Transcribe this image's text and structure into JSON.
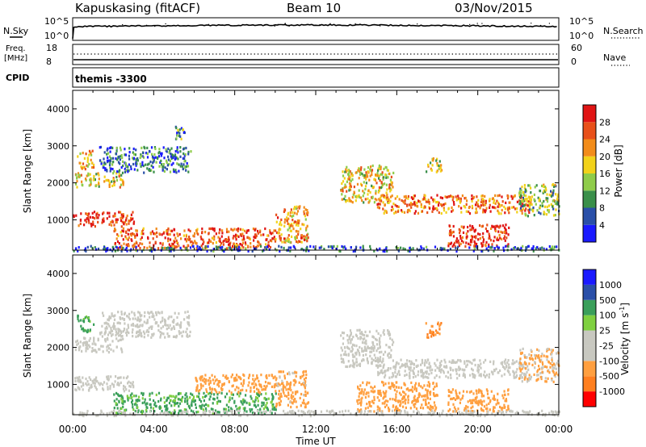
{
  "header": {
    "station": "Kapuskasing (fitACF)",
    "beam": "Beam 10",
    "date": "03/Nov/2015"
  },
  "noise_panel": {
    "left_label": "N.Sky",
    "right_label": "N.Search",
    "left_ticks": [
      "10^5",
      "10^0"
    ],
    "right_ticks": [
      "10^5",
      "10^0"
    ]
  },
  "freq_panel": {
    "left_label_line1": "Freq.",
    "left_label_line2": "[MHz]",
    "right_label": "Nave",
    "left_ticks": [
      "18",
      "8"
    ],
    "right_ticks": [
      "60",
      "0"
    ]
  },
  "cpid_panel": {
    "label": "CPID",
    "value": "themis -3300"
  },
  "x_axis": {
    "label": "Time UT",
    "ticks": [
      "00:00",
      "04:00",
      "08:00",
      "12:00",
      "16:00",
      "20:00",
      "00:00"
    ]
  },
  "colors": {
    "power": [
      "#1a1aff",
      "#2a4fa8",
      "#3a8f4a",
      "#8fcc4a",
      "#f2d21a",
      "#f28c1a",
      "#e8501a",
      "#e01414"
    ],
    "velocity": [
      "#ff0000",
      "#ff7f1f",
      "#ff9f3f",
      "#c8c8c0",
      "#c8c8c0",
      "#7fd040",
      "#3a9f5a",
      "#2a4fa8",
      "#1a1aff"
    ]
  },
  "chart_data": [
    {
      "type": "heatmap",
      "title": "Power",
      "xlabel": "Time UT",
      "ylabel": "Slant Range [km]",
      "colorbar_label": "Power [dB]",
      "x_ticks": [
        "00:00",
        "04:00",
        "08:00",
        "12:00",
        "16:00",
        "20:00",
        "00:00"
      ],
      "y_ticks": [
        1000,
        2000,
        3000,
        4000
      ],
      "ylim": [
        180,
        4500
      ],
      "colorbar_ticks": [
        4,
        8,
        12,
        16,
        20,
        24,
        28
      ],
      "colorbar_range": [
        0,
        32
      ],
      "regions": [
        {
          "t": [
            0.0,
            3.0
          ],
          "r": [
            850,
            1250
          ],
          "v": 28
        },
        {
          "t": [
            0.1,
            2.5
          ],
          "r": [
            1900,
            2300
          ],
          "v": 18
        },
        {
          "t": [
            0.2,
            1.0
          ],
          "r": [
            2400,
            2900
          ],
          "v": 20
        },
        {
          "t": [
            1.3,
            5.8
          ],
          "r": [
            2300,
            3000
          ],
          "v": 8
        },
        {
          "t": [
            2.0,
            10.0
          ],
          "r": [
            250,
            800
          ],
          "v": 26
        },
        {
          "t": [
            10.0,
            11.6
          ],
          "r": [
            400,
            1400
          ],
          "v": 22
        },
        {
          "t": [
            13.2,
            15.8
          ],
          "r": [
            1500,
            2500
          ],
          "v": 18
        },
        {
          "t": [
            15.0,
            22.5
          ],
          "r": [
            1200,
            1700
          ],
          "v": 24
        },
        {
          "t": [
            18.5,
            21.5
          ],
          "r": [
            300,
            900
          ],
          "v": 28
        },
        {
          "t": [
            22.0,
            24.0
          ],
          "r": [
            1100,
            2000
          ],
          "v": 14
        },
        {
          "t": [
            0.0,
            24.0
          ],
          "r": [
            180,
            320
          ],
          "v": 6
        },
        {
          "t": [
            17.4,
            18.2
          ],
          "r": [
            2300,
            2700
          ],
          "v": 16
        },
        {
          "t": [
            5.0,
            5.5
          ],
          "r": [
            3200,
            3600
          ],
          "v": 10
        }
      ]
    },
    {
      "type": "heatmap",
      "title": "Velocity",
      "xlabel": "Time UT",
      "ylabel": "Slant Range [km]",
      "colorbar_label": "Velocity [m s-1]",
      "colorbar_unit_main": "Velocity [m s",
      "colorbar_unit_exp": "-1",
      "colorbar_unit_close": "]",
      "x_ticks": [
        "00:00",
        "04:00",
        "08:00",
        "12:00",
        "16:00",
        "20:00",
        "00:00"
      ],
      "y_ticks": [
        1000,
        2000,
        3000,
        4000
      ],
      "ylim": [
        180,
        4500
      ],
      "colorbar_ticks": [
        "-1000",
        "-500",
        "-100",
        "-25",
        "25",
        "100",
        "500",
        "1000"
      ],
      "regions": [
        {
          "t": [
            0.0,
            3.0
          ],
          "r": [
            850,
            1250
          ],
          "v": 0
        },
        {
          "t": [
            0.1,
            2.5
          ],
          "r": [
            1900,
            2300
          ],
          "v": 0
        },
        {
          "t": [
            0.2,
            1.0
          ],
          "r": [
            2400,
            2900
          ],
          "v": 150
        },
        {
          "t": [
            1.3,
            5.8
          ],
          "r": [
            2300,
            3000
          ],
          "v": 0
        },
        {
          "t": [
            2.0,
            10.0
          ],
          "r": [
            250,
            800
          ],
          "v": 150
        },
        {
          "t": [
            6.0,
            10.0
          ],
          "r": [
            800,
            1300
          ],
          "v": -300
        },
        {
          "t": [
            10.0,
            11.6
          ],
          "r": [
            400,
            1400
          ],
          "v": -200
        },
        {
          "t": [
            13.2,
            15.8
          ],
          "r": [
            1500,
            2500
          ],
          "v": 0
        },
        {
          "t": [
            15.0,
            22.5
          ],
          "r": [
            1200,
            1700
          ],
          "v": 0
        },
        {
          "t": [
            14.0,
            18.0
          ],
          "r": [
            300,
            1100
          ],
          "v": -300
        },
        {
          "t": [
            18.5,
            21.5
          ],
          "r": [
            300,
            900
          ],
          "v": -300
        },
        {
          "t": [
            22.0,
            24.0
          ],
          "r": [
            1100,
            2000
          ],
          "v": -120
        },
        {
          "t": [
            17.4,
            18.2
          ],
          "r": [
            2300,
            2700
          ],
          "v": -600
        },
        {
          "t": [
            0.0,
            24.0
          ],
          "r": [
            180,
            320
          ],
          "v": 0
        }
      ]
    }
  ]
}
